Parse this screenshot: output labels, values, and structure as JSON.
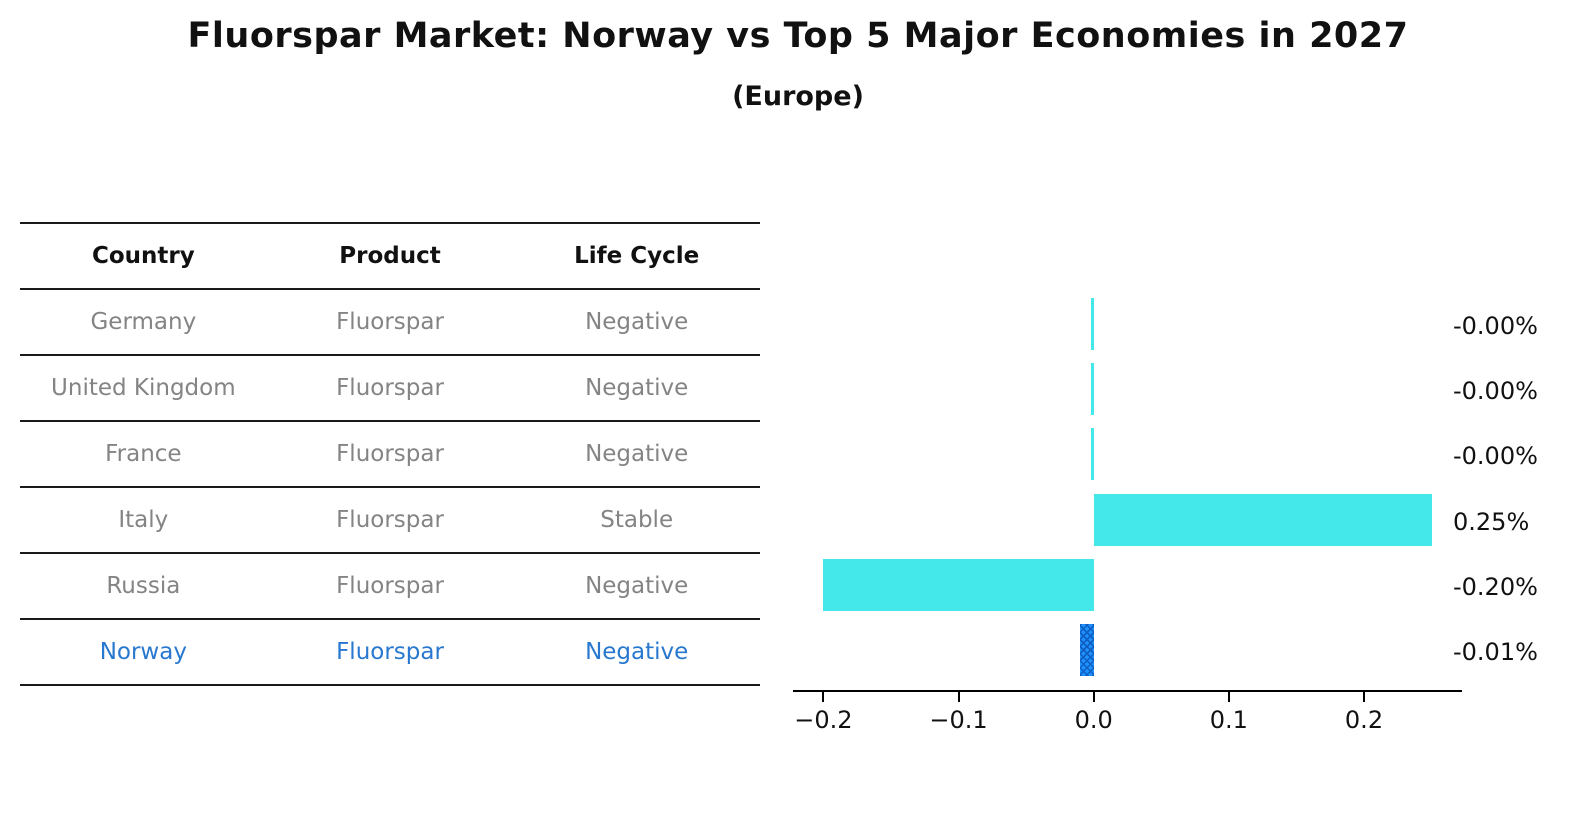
{
  "title": "Fluorspar Market: Norway vs Top 5 Major Economies in 2027",
  "subtitle": "(Europe)",
  "table": {
    "headers": [
      "Country",
      "Product",
      "Life Cycle"
    ],
    "rows": [
      {
        "country": "Germany",
        "product": "Fluorspar",
        "life_cycle": "Negative",
        "highlight": false
      },
      {
        "country": "United Kingdom",
        "product": "Fluorspar",
        "life_cycle": "Negative",
        "highlight": false
      },
      {
        "country": "France",
        "product": "Fluorspar",
        "life_cycle": "Negative",
        "highlight": false
      },
      {
        "country": "Italy",
        "product": "Fluorspar",
        "life_cycle": "Stable",
        "highlight": false
      },
      {
        "country": "Russia",
        "product": "Fluorspar",
        "life_cycle": "Negative",
        "highlight": false
      },
      {
        "country": "Norway",
        "product": "Fluorspar",
        "life_cycle": "Negative",
        "highlight": true
      }
    ]
  },
  "chart_data": {
    "type": "bar",
    "orientation": "horizontal",
    "categories": [
      "Germany",
      "United Kingdom",
      "France",
      "Italy",
      "Russia",
      "Norway"
    ],
    "values": [
      -0.002,
      -0.002,
      -0.002,
      0.25,
      -0.2,
      -0.01
    ],
    "bar_labels": [
      "-0.00%",
      "-0.00%",
      "-0.00%",
      "0.25%",
      "-0.20%",
      "-0.01%"
    ],
    "x_ticks": [
      -0.2,
      -0.1,
      0.0,
      0.1,
      0.2
    ],
    "x_tick_labels": [
      "−0.2",
      "−0.1",
      "0.0",
      "0.1",
      "0.2"
    ],
    "xlim": [
      -0.2225,
      0.2725
    ],
    "grid": false,
    "legend": null,
    "highlight_index": 5
  },
  "colors": {
    "bar": "#44E8EA",
    "highlight_bar": "#1E90FF",
    "highlight_hatch": "#0f5fc0",
    "row_text": "#848484",
    "highlight_text": "#2878CF",
    "header_text": "#111111",
    "line": "#1a1a1a"
  }
}
